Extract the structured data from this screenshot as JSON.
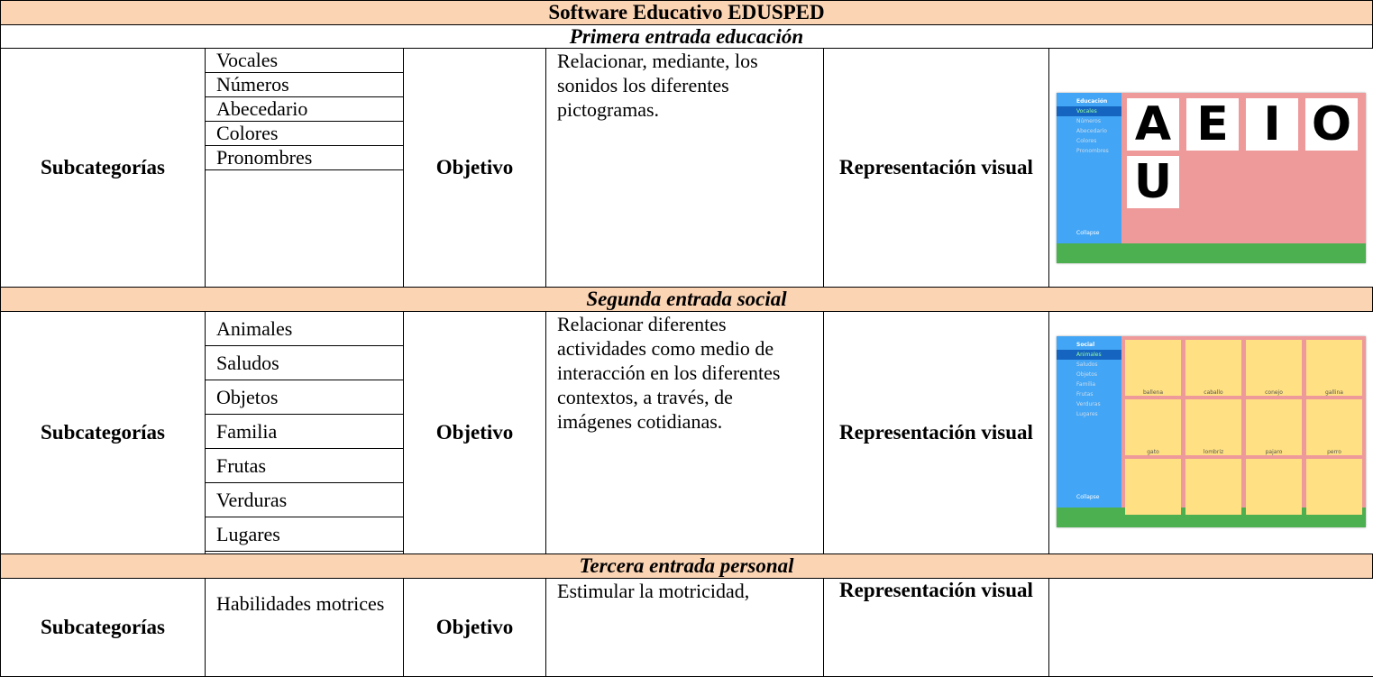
{
  "title": "Software Educativo EDUSPED",
  "sections": [
    {
      "heading": "Primera entrada educación",
      "label_subcategories": "Subcategorías",
      "subcategories": [
        "Vocales",
        "Números",
        "Abecedario",
        "Colores",
        "Pronombres"
      ],
      "label_objective": "Objetivo",
      "objective": "Relacionar, mediante, los sonidos los diferentes pictogramas.",
      "label_visual": "Representación visual",
      "screenshot": {
        "sidebar_title": "Educación",
        "sidebar_items": [
          "Vocales",
          "Números",
          "Abecedario",
          "Colores",
          "Pronombres"
        ],
        "collapse": "Collapse",
        "tiles": [
          "A",
          "E",
          "I",
          "O",
          "U"
        ]
      }
    },
    {
      "heading": "Segunda entrada social",
      "label_subcategories": "Subcategorías",
      "subcategories": [
        "Animales",
        "Saludos",
        "Objetos",
        "Familia",
        "Frutas",
        "Verduras",
        "Lugares"
      ],
      "label_objective": "Objetivo",
      "objective": "Relacionar diferentes actividades como medio de interacción en los diferentes contextos, a través, de imágenes cotidianas.",
      "label_visual": "Representación visual",
      "screenshot": {
        "sidebar_title": "Social",
        "sidebar_items": [
          "Animales",
          "Saludos",
          "Objetos",
          "Familia",
          "Frutas",
          "Verduras",
          "Lugares"
        ],
        "collapse": "Collapse",
        "tiles": [
          "ballena",
          "caballo",
          "conejo",
          "gallina",
          "gato",
          "lombriz",
          "pajaro",
          "perro"
        ]
      }
    },
    {
      "heading": "Tercera entrada personal",
      "label_subcategories": "Subcategorías",
      "subcategories": [
        "Habilidades motrices"
      ],
      "label_objective": "Objetivo",
      "objective": "Estimular la motricidad,",
      "label_visual": "Representación visual"
    }
  ]
}
